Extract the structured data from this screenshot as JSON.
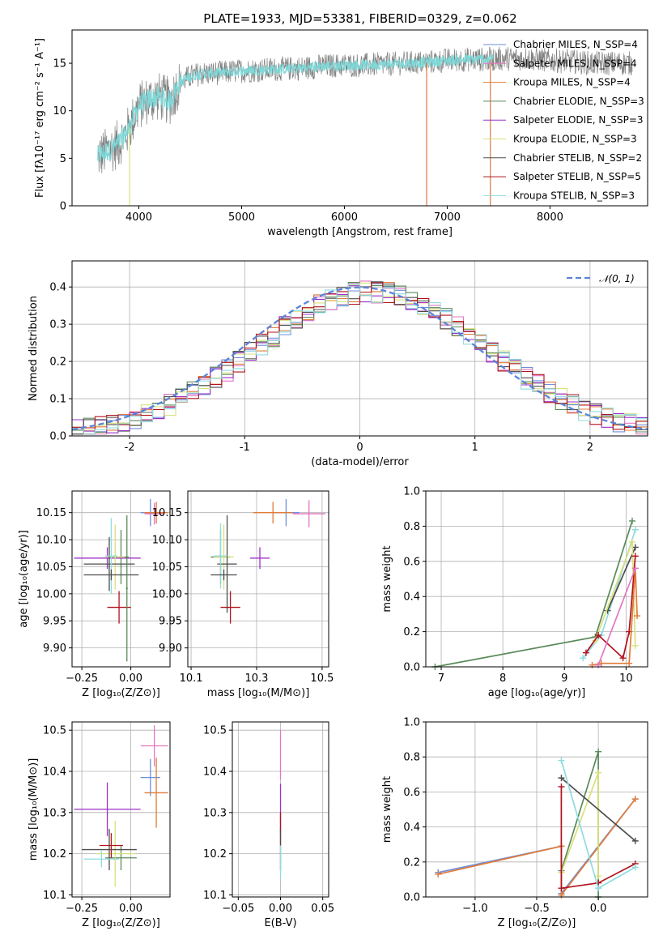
{
  "title": "PLATE=1933, MJD=53381, FIBERID=0329, z=0.062",
  "chart_data": [
    {
      "type": "line",
      "title": "PLATE=1933, MJD=53381, FIBERID=0329, z=0.062",
      "xlabel": "wavelength [Angstrom, rest frame]",
      "ylabel": "Flux [fλ10⁻¹⁷ erg cm⁻² s⁻¹ A⁻¹]",
      "xlim": [
        3350,
        8950
      ],
      "ylim": [
        0,
        18.5
      ],
      "xticks": [
        4000,
        5000,
        6000,
        7000,
        8000
      ],
      "yticks": [
        0,
        5,
        10,
        15
      ],
      "grid": false,
      "legend_position": "right",
      "legend": [
        {
          "name": "Chabrier MILES, N_SSP=4",
          "color": "#6d8fd9"
        },
        {
          "name": "Salpeter MILES, N_SSP=4",
          "color": "#e377c2"
        },
        {
          "name": "Kroupa MILES, N_SSP=4",
          "color": "#e07b39"
        },
        {
          "name": "Chabrier ELODIE, N_SSP=3",
          "color": "#5b8a5b"
        },
        {
          "name": "Salpeter ELODIE, N_SSP=3",
          "color": "#9b30c8"
        },
        {
          "name": "Kroupa ELODIE, N_SSP=3",
          "color": "#d8e07b"
        },
        {
          "name": "Chabrier STELIB, N_SSP=2",
          "color": "#4d4d4d"
        },
        {
          "name": "Salpeter STELIB, N_SSP=5",
          "color": "#b0141e"
        },
        {
          "name": "Kroupa STELIB, N_SSP=3",
          "color": "#8fdbe0"
        }
      ],
      "data_color": "#808080",
      "model_color": "#7fd8d8",
      "continuum": {
        "x": [
          3600,
          3700,
          3800,
          3900,
          4000,
          4100,
          4200,
          4300,
          4400,
          4500,
          4600,
          4800,
          5000,
          5200,
          5400,
          5600,
          5800,
          6000,
          6200,
          6400,
          6600,
          6800,
          7000,
          7200,
          7400,
          7600,
          7800,
          8000,
          8200,
          8400,
          8800
        ],
        "y": [
          5.2,
          5.8,
          6.5,
          8.0,
          10.5,
          11.2,
          11.5,
          11.0,
          13.0,
          13.6,
          13.9,
          14.0,
          14.2,
          14.3,
          14.4,
          14.5,
          14.7,
          14.8,
          14.8,
          14.9,
          15.0,
          15.1,
          15.3,
          15.4,
          15.4,
          15.5,
          15.5,
          15.3,
          15.2,
          15.0,
          15.0
        ]
      },
      "data_extent": [
        3600,
        8800
      ],
      "model_extent": [
        3600,
        7450
      ]
    },
    {
      "type": "histogram",
      "xlabel": "(data-model)/error",
      "ylabel": "Normed distribution",
      "xlim": [
        -2.5,
        2.5
      ],
      "ylim": [
        0,
        0.47
      ],
      "xticks": [
        -2,
        -1,
        0,
        1,
        2
      ],
      "yticks": [
        0.0,
        0.1,
        0.2,
        0.3,
        0.4
      ],
      "grid": true,
      "legend_position": "top-right",
      "reference_curve": {
        "name": "𝒩(0, 1)",
        "color": "#5b84d8",
        "style": "dashed"
      },
      "bin_edges_start": -2.5,
      "bin_width": 0.1,
      "series_count": 9
    },
    {
      "type": "scatter",
      "xlabel": "Z [log₁₀(Z/Z⊙)]",
      "ylabel": "age  [log₁₀(age/yr)]",
      "xlim": [
        -0.3,
        0.2
      ],
      "ylim": [
        9.865,
        10.19
      ],
      "xticks": [
        -0.25,
        0.0
      ],
      "xticklabels": [
        "−0.25",
        "0.00"
      ],
      "yticks": [
        9.9,
        9.95,
        10.0,
        10.05,
        10.1,
        10.15
      ],
      "grid": true,
      "points": [
        {
          "model": "Chabrier MILES",
          "x": 0.1,
          "y": 10.15,
          "xerr": 0.05,
          "yerr": 0.025
        },
        {
          "model": "Salpeter MILES",
          "x": 0.12,
          "y": 10.148,
          "xerr": 0.05,
          "yerr": 0.02
        },
        {
          "model": "Kroupa MILES",
          "x": 0.13,
          "y": 10.15,
          "xerr": 0.06,
          "yerr": 0.02
        },
        {
          "model": "Chabrier ELODIE",
          "x": -0.05,
          "y": 10.068,
          "xerr": 0.04,
          "yerr": 0.05
        },
        {
          "model": "Salpeter ELODIE",
          "x": -0.12,
          "y": 10.066,
          "xerr": 0.17,
          "yerr": 0.02
        },
        {
          "model": "Kroupa ELODIE",
          "x": -0.08,
          "y": 10.068,
          "xerr": 0.05,
          "yerr": 0.06
        },
        {
          "model": "Chabrier STELIB",
          "x": -0.11,
          "y": 10.055,
          "xerr": 0.13,
          "yerr": 0.05
        },
        {
          "model": "Salpeter STELIB",
          "x": -0.06,
          "y": 9.975,
          "xerr": 0.06,
          "yerr": 0.03
        },
        {
          "model": "Kroupa STELIB",
          "x": -0.1,
          "y": 10.07,
          "xerr": 0.03,
          "yerr": 0.07
        },
        {
          "model": "Chabrier STELIB",
          "x": -0.1,
          "y": 10.035,
          "xerr": 0.14,
          "yerr": 0.01
        },
        {
          "model": "Chabrier ELODIE",
          "x": -0.02,
          "y": 10.01,
          "xerr": 0.005,
          "yerr": 0.135
        }
      ]
    },
    {
      "type": "scatter",
      "xlabel": "mass [log₁₀(M/M⊙)]",
      "ylabel": "",
      "xlim": [
        10.09,
        10.52
      ],
      "ylim": [
        9.865,
        10.19
      ],
      "xticks": [
        10.1,
        10.3,
        10.5
      ],
      "yticks": [
        9.9,
        9.95,
        10.0,
        10.05,
        10.1,
        10.15
      ],
      "grid": true,
      "points": [
        {
          "model": "Chabrier MILES",
          "x": 10.39,
          "y": 10.15,
          "xerr": 0.04,
          "yerr": 0.025
        },
        {
          "model": "Salpeter MILES",
          "x": 10.46,
          "y": 10.148,
          "xerr": 0.05,
          "yerr": 0.025
        },
        {
          "model": "Kroupa MILES",
          "x": 10.35,
          "y": 10.15,
          "xerr": 0.06,
          "yerr": 0.02
        },
        {
          "model": "Chabrier ELODIE",
          "x": 10.19,
          "y": 10.068,
          "xerr": 0.03,
          "yerr": 0.05
        },
        {
          "model": "Salpeter ELODIE",
          "x": 10.31,
          "y": 10.066,
          "xerr": 0.03,
          "yerr": 0.02
        },
        {
          "model": "Kroupa ELODIE",
          "x": 10.2,
          "y": 10.068,
          "xerr": 0.03,
          "yerr": 0.06
        },
        {
          "model": "Chabrier STELIB",
          "x": 10.21,
          "y": 10.055,
          "xerr": 0.03,
          "yerr": 0.09
        },
        {
          "model": "Salpeter STELIB",
          "x": 10.22,
          "y": 9.975,
          "xerr": 0.03,
          "yerr": 0.03
        },
        {
          "model": "Kroupa STELIB",
          "x": 10.19,
          "y": 10.07,
          "xerr": 0.02,
          "yerr": 0.06
        },
        {
          "model": "Chabrier STELIB",
          "x": 10.2,
          "y": 10.035,
          "xerr": 0.04,
          "yerr": 0.01
        }
      ]
    },
    {
      "type": "line",
      "xlabel": "age  [log₁₀(age/yr)]",
      "ylabel": "mass weight",
      "xlim": [
        6.75,
        10.35
      ],
      "ylim": [
        0,
        1.0
      ],
      "xticks": [
        7,
        8,
        9,
        10
      ],
      "yticks": [
        0.0,
        0.2,
        0.4,
        0.6,
        0.8,
        1.0
      ],
      "grid": true,
      "series": [
        {
          "model": "Chabrier ELODIE",
          "x": [
            6.9,
            9.5,
            10.1
          ],
          "y": [
            0.0,
            0.17,
            0.83
          ]
        },
        {
          "model": "Kroupa STELIB",
          "x": [
            9.3,
            9.6,
            10.15
          ],
          "y": [
            0.05,
            0.18,
            0.78
          ]
        },
        {
          "model": "Chabrier STELIB",
          "x": [
            9.7,
            10.15
          ],
          "y": [
            0.32,
            0.68
          ]
        },
        {
          "model": "Kroupa ELODIE",
          "x": [
            9.5,
            10.1,
            10.15
          ],
          "y": [
            0.15,
            0.71,
            0.12
          ]
        },
        {
          "model": "Salpeter STELIB",
          "x": [
            9.35,
            9.55,
            9.95,
            10.05,
            10.15
          ],
          "y": [
            0.08,
            0.18,
            0.05,
            0.2,
            0.63
          ]
        },
        {
          "model": "Kroupa MILES",
          "x": [
            9.45,
            9.6,
            10.05,
            10.15,
            10.18
          ],
          "y": [
            0.01,
            0.02,
            0.02,
            0.56,
            0.29
          ]
        },
        {
          "model": "Salpeter MILES",
          "x": [
            9.55,
            10.15
          ],
          "y": [
            0.01,
            0.56
          ]
        }
      ]
    },
    {
      "type": "scatter",
      "xlabel": "Z [log₁₀(Z/Z⊙)]",
      "ylabel": "mass [log₁₀(M/M⊙)]",
      "xlim": [
        -0.3,
        0.2
      ],
      "ylim": [
        10.095,
        10.52
      ],
      "xticks": [
        -0.25,
        0.0
      ],
      "xticklabels": [
        "−0.25",
        "0.00"
      ],
      "yticks": [
        10.1,
        10.2,
        10.3,
        10.4,
        10.5
      ],
      "grid": true,
      "points": [
        {
          "model": "Chabrier MILES",
          "x": 0.1,
          "y": 10.385,
          "xerr": 0.05,
          "yerr": 0.045
        },
        {
          "model": "Salpeter MILES",
          "x": 0.12,
          "y": 10.462,
          "xerr": 0.07,
          "yerr": 0.05
        },
        {
          "model": "Kroupa MILES",
          "x": 0.13,
          "y": 10.348,
          "xerr": 0.06,
          "yerr": 0.085
        },
        {
          "model": "Chabrier ELODIE",
          "x": -0.05,
          "y": 10.19,
          "xerr": 0.08,
          "yerr": 0.03
        },
        {
          "model": "Salpeter ELODIE",
          "x": -0.12,
          "y": 10.308,
          "xerr": 0.17,
          "yerr": 0.065
        },
        {
          "model": "Kroupa ELODIE",
          "x": -0.08,
          "y": 10.2,
          "xerr": 0.1,
          "yerr": 0.08
        },
        {
          "model": "Chabrier STELIB",
          "x": -0.11,
          "y": 10.21,
          "xerr": 0.14,
          "yerr": 0.05
        },
        {
          "model": "Salpeter STELIB",
          "x": -0.1,
          "y": 10.22,
          "xerr": 0.06,
          "yerr": 0.03
        },
        {
          "model": "Kroupa STELIB",
          "x": -0.15,
          "y": 10.187,
          "xerr": 0.09,
          "yerr": 0.02
        }
      ]
    },
    {
      "type": "scatter",
      "xlabel": "E(B-V)",
      "ylabel": "",
      "xlim": [
        -0.057,
        0.057
      ],
      "ylim": [
        10.095,
        10.52
      ],
      "xticks": [
        -0.05,
        0.0,
        0.05
      ],
      "xticklabels": [
        "−0.05",
        "0.00",
        "0.05"
      ],
      "yticks": [
        10.1,
        10.2,
        10.3,
        10.4,
        10.5
      ],
      "grid": true,
      "points": [
        {
          "model": "Salpeter MILES",
          "x": 0.0,
          "y": 10.44,
          "xerr": 0.0,
          "yerr": 0.06
        },
        {
          "model": "Salpeter ELODIE",
          "x": 0.0,
          "y": 10.31,
          "xerr": 0.0,
          "yerr": 0.06
        },
        {
          "model": "Salpeter STELIB",
          "x": 0.0,
          "y": 10.26,
          "xerr": 0.0,
          "yerr": 0.04
        },
        {
          "model": "Chabrier STELIB",
          "x": 0.0,
          "y": 10.21,
          "xerr": 0.0,
          "yerr": 0.05
        },
        {
          "model": "Kroupa STELIB",
          "x": 0.0,
          "y": 10.18,
          "xerr": 0.0,
          "yerr": 0.04
        }
      ]
    },
    {
      "type": "line",
      "xlabel": "Z [log₁₀(Z/Z⊙)]",
      "ylabel": "mass weight",
      "xlim": [
        -1.4,
        0.4
      ],
      "ylim": [
        0,
        1.0
      ],
      "xticks": [
        -1.0,
        -0.5,
        0.0
      ],
      "xticklabels": [
        "−1.0",
        "−0.5",
        "0.0"
      ],
      "yticks": [
        0.0,
        0.2,
        0.4,
        0.6,
        0.8,
        1.0
      ],
      "grid": true,
      "series": [
        {
          "model": "Chabrier MILES",
          "x": [
            -1.3,
            -0.3,
            -0.3,
            0.3
          ],
          "y": [
            0.14,
            0.29,
            0.02,
            0.56
          ]
        },
        {
          "model": "Kroupa MILES",
          "x": [
            -1.3,
            -0.3,
            -0.3,
            0.3
          ],
          "y": [
            0.13,
            0.29,
            0.01,
            0.56
          ]
        },
        {
          "model": "Chabrier ELODIE",
          "x": [
            -0.3,
            0.0,
            0.0
          ],
          "y": [
            0.15,
            0.83,
            0.0
          ]
        },
        {
          "model": "Kroupa ELODIE",
          "x": [
            -0.3,
            0.0,
            0.0
          ],
          "y": [
            0.14,
            0.71,
            0.12
          ]
        },
        {
          "model": "Chabrier STELIB",
          "x": [
            -0.3,
            0.3
          ],
          "y": [
            0.68,
            0.32
          ]
        },
        {
          "model": "Salpeter STELIB",
          "x": [
            -0.3,
            -0.3,
            0.0,
            0.3
          ],
          "y": [
            0.63,
            0.05,
            0.08,
            0.19
          ]
        },
        {
          "model": "Kroupa STELIB",
          "x": [
            -0.3,
            0.0,
            0.3
          ],
          "y": [
            0.78,
            0.05,
            0.17
          ]
        }
      ]
    }
  ]
}
